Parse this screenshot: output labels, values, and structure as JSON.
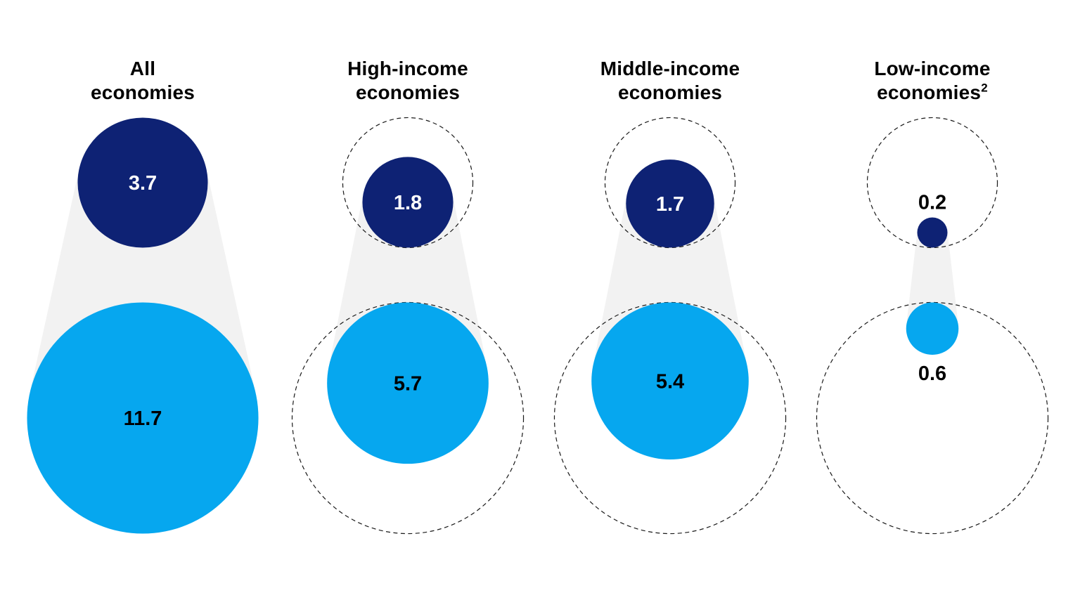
{
  "chart_data": {
    "type": "bubble",
    "title": "",
    "categories": [
      "All economies",
      "High-income economies",
      "Middle-income economies",
      "Low-income economies"
    ],
    "series": [
      {
        "name": "top-dark-circles",
        "values": [
          3.7,
          1.8,
          1.7,
          0.2
        ]
      },
      {
        "name": "bottom-light-circles",
        "values": [
          11.7,
          5.7,
          5.4,
          0.6
        ]
      }
    ],
    "groups": [
      {
        "label_line1": "All",
        "label_line2": "economies",
        "label_superscript": "",
        "top_value": 3.7,
        "bottom_value": 11.7,
        "top_label": "3.7",
        "bottom_label": "11.7",
        "show_reference_outline": false
      },
      {
        "label_line1": "High-income",
        "label_line2": "economies",
        "label_superscript": "",
        "top_value": 1.8,
        "bottom_value": 5.7,
        "top_label": "1.8",
        "bottom_label": "5.7",
        "show_reference_outline": true
      },
      {
        "label_line1": "Middle-income",
        "label_line2": "economies",
        "label_superscript": "",
        "top_value": 1.7,
        "bottom_value": 5.4,
        "top_label": "1.7",
        "bottom_label": "5.4",
        "show_reference_outline": true
      },
      {
        "label_line1": "Low-income",
        "label_line2": "economies",
        "label_superscript": "2",
        "top_value": 0.2,
        "bottom_value": 0.6,
        "top_label": "0.2",
        "bottom_label": "0.6",
        "show_reference_outline": true
      }
    ],
    "reference_outline": {
      "top_value": 3.7,
      "bottom_value": 11.7
    },
    "layout_hints": {
      "circle_area_proportional_to_value": true,
      "dashed_outlines_repeat_first_column_sizes": true,
      "funnel_connects_top_and_bottom_circles": true,
      "legend": "none",
      "grid": "off"
    },
    "colors": {
      "top_circle": "#0e2274",
      "bottom_circle": "#06a7ef",
      "funnel": "#f2f2f2",
      "outline": "#1a1a1a",
      "value_on_dark": "#ffffff",
      "value_on_light": "#000000",
      "title_text": "#000000"
    }
  }
}
